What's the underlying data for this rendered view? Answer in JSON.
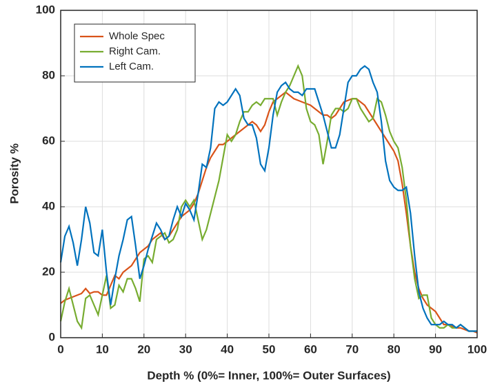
{
  "chart_data": {
    "type": "line",
    "xlabel": "Depth % (0%= Inner, 100%= Outer Surfaces)",
    "ylabel": "Porosity %",
    "xlim": [
      0,
      100
    ],
    "ylim": [
      0,
      100
    ],
    "xticks": [
      0,
      10,
      20,
      30,
      40,
      50,
      60,
      70,
      80,
      90,
      100
    ],
    "yticks": [
      0,
      20,
      40,
      60,
      80,
      100
    ],
    "grid": true,
    "legend": "upper-left",
    "x": [
      0,
      1,
      2,
      3,
      4,
      5,
      6,
      7,
      8,
      9,
      10,
      11,
      12,
      13,
      14,
      15,
      16,
      17,
      18,
      19,
      20,
      21,
      22,
      23,
      24,
      25,
      26,
      27,
      28,
      29,
      30,
      31,
      32,
      33,
      34,
      35,
      36,
      37,
      38,
      39,
      40,
      41,
      42,
      43,
      44,
      45,
      46,
      47,
      48,
      49,
      50,
      51,
      52,
      53,
      54,
      55,
      56,
      57,
      58,
      59,
      60,
      61,
      62,
      63,
      64,
      65,
      66,
      67,
      68,
      69,
      70,
      71,
      72,
      73,
      74,
      75,
      76,
      77,
      78,
      79,
      80,
      81,
      82,
      83,
      84,
      85,
      86,
      87,
      88,
      89,
      90,
      91,
      92,
      93,
      94,
      95,
      96,
      97,
      98,
      99,
      100
    ],
    "series": [
      {
        "name": "Whole Spec",
        "color": "#d95319",
        "values": [
          10.5,
          11.5,
          12,
          12.5,
          13,
          13.5,
          15,
          13.5,
          14,
          14,
          13,
          13,
          16,
          19,
          18,
          20,
          21,
          22,
          24,
          26,
          27,
          28,
          30,
          31,
          32,
          30,
          31,
          33,
          35,
          37,
          38,
          39,
          41,
          44,
          48,
          52,
          55,
          57,
          59,
          59,
          60,
          61,
          62,
          63,
          64,
          65,
          66,
          65,
          63,
          65,
          69,
          72,
          73,
          74,
          75,
          74,
          73,
          72.5,
          72,
          71.5,
          71,
          70,
          69,
          68,
          68,
          67,
          68,
          70,
          72,
          72.5,
          73,
          73,
          72,
          71,
          69,
          67,
          65,
          63,
          61,
          59,
          57,
          54,
          47,
          38,
          28,
          20,
          15,
          12,
          10,
          9,
          8,
          6,
          4,
          4,
          3.5,
          3,
          3,
          2.5,
          2,
          2,
          1.5
        ]
      },
      {
        "name": "Right Cam.",
        "color": "#77ac30",
        "values": [
          5,
          11,
          15,
          10,
          5,
          3,
          12,
          13,
          10,
          7,
          13,
          19,
          9,
          10,
          16,
          14,
          18,
          18,
          15,
          11,
          24,
          25,
          23,
          30,
          31,
          32,
          29,
          30,
          33,
          40,
          42,
          40,
          42,
          36,
          30,
          33,
          38,
          43,
          48,
          55,
          62,
          60,
          62,
          66,
          69,
          69,
          71,
          72,
          71,
          73,
          73,
          73,
          68,
          72,
          75,
          77,
          80,
          83,
          80,
          70,
          66,
          65,
          62,
          53,
          60,
          68,
          70,
          70,
          69,
          70,
          73,
          73,
          70,
          68,
          66,
          67,
          73,
          72,
          68,
          63,
          60,
          58,
          52,
          42,
          28,
          18,
          12,
          13,
          13,
          6,
          4,
          3,
          3,
          4,
          3,
          3,
          4,
          3,
          2,
          2,
          2
        ]
      },
      {
        "name": "Left Cam.",
        "color": "#0072bd",
        "values": [
          23,
          31,
          34,
          29,
          22,
          30,
          40,
          35,
          26,
          25,
          33,
          20,
          10,
          18,
          25,
          30,
          36,
          37,
          28,
          18,
          22,
          27,
          31,
          35,
          33,
          30,
          31,
          36,
          40,
          37,
          41,
          39,
          36,
          44,
          53,
          52,
          58,
          70,
          72,
          71,
          72,
          74,
          76,
          74,
          67,
          65,
          65,
          61,
          53,
          51,
          58,
          68,
          75,
          77,
          78,
          76,
          75,
          75,
          74,
          76,
          76,
          76,
          72,
          68,
          63,
          58,
          58,
          62,
          70,
          78,
          80,
          80,
          82,
          83,
          82,
          78,
          75,
          66,
          54,
          48,
          46,
          45,
          45,
          46,
          38,
          25,
          14,
          9,
          6,
          4,
          4,
          4,
          5,
          4,
          4,
          3,
          4,
          3,
          2,
          2,
          2
        ]
      }
    ]
  }
}
